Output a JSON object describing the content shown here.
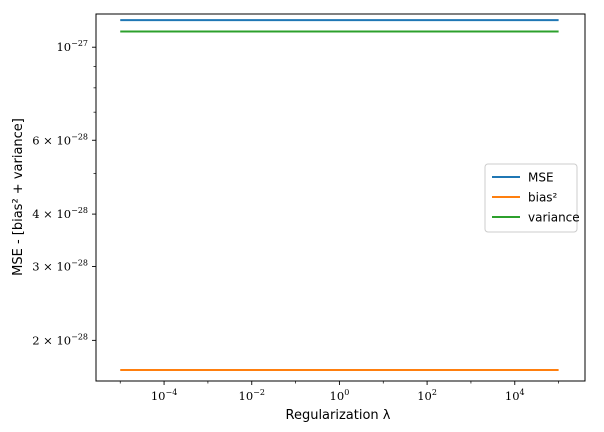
{
  "chart_data": {
    "type": "line",
    "xlabel": "Regularization λ",
    "ylabel": "MSE - [bias² + variance]",
    "x_scale": "log",
    "y_scale": "log",
    "xlim": [
      2.8e-06,
      400000
    ],
    "ylim": [
      1.6e-28,
      1.2e-27
    ],
    "x": [
      1e-05,
      100000
    ],
    "series": [
      {
        "name": "MSE",
        "color": "#1f77b4",
        "values": [
          1.16e-27,
          1.16e-27
        ]
      },
      {
        "name": "bias²",
        "color": "#ff7f0e",
        "values": [
          1.7e-28,
          1.7e-28
        ]
      },
      {
        "name": "variance",
        "color": "#2ca02c",
        "values": [
          1.09e-27,
          1.09e-27
        ]
      }
    ],
    "x_ticks": [
      {
        "value": 0.0001,
        "base": "10",
        "exp": "−4"
      },
      {
        "value": 0.01,
        "base": "10",
        "exp": "−2"
      },
      {
        "value": 1,
        "base": "10",
        "exp": "0"
      },
      {
        "value": 100,
        "base": "10",
        "exp": "2"
      },
      {
        "value": 10000,
        "base": "10",
        "exp": "4"
      }
    ],
    "x_minor_ticks": [
      1e-05,
      0.001,
      0.1,
      10,
      1000,
      100000
    ],
    "y_ticks": [
      {
        "value": 1e-27,
        "mant": "",
        "base": "10",
        "exp": "−27"
      },
      {
        "value": 6e-28,
        "mant": "6 × ",
        "base": "10",
        "exp": "−28"
      },
      {
        "value": 4e-28,
        "mant": "4 × ",
        "base": "10",
        "exp": "−28"
      },
      {
        "value": 3e-28,
        "mant": "3 × ",
        "base": "10",
        "exp": "−28"
      },
      {
        "value": 2e-28,
        "mant": "2 × ",
        "base": "10",
        "exp": "−28"
      }
    ],
    "y_minor_ticks": [
      9e-28,
      8e-28,
      7e-28,
      5e-28
    ],
    "legend": {
      "position": "center-right"
    },
    "grid": false
  }
}
